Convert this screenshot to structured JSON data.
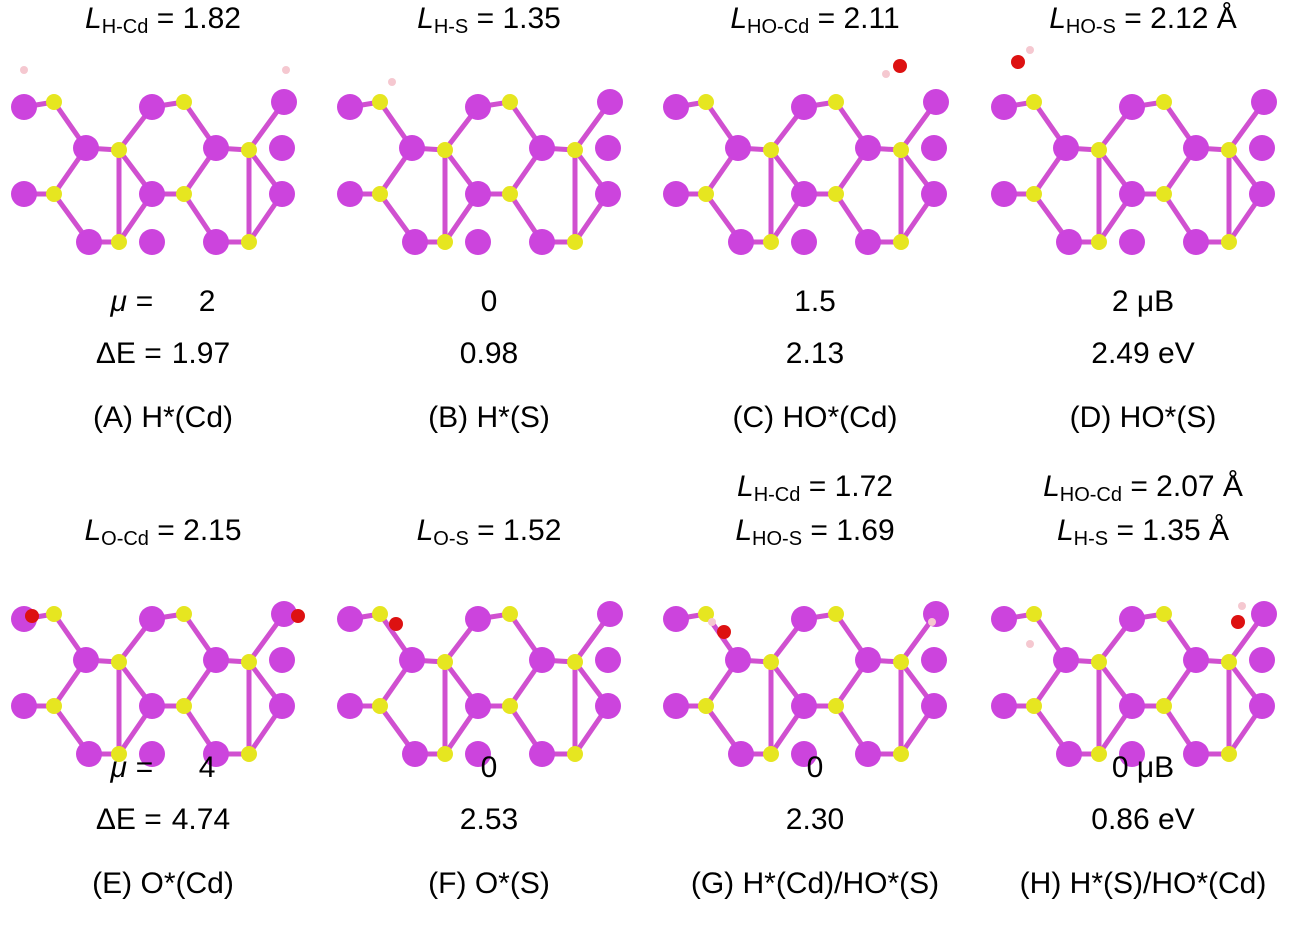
{
  "colors": {
    "cd": "#cc44dd",
    "s": "#e6e620",
    "o": "#dd1111",
    "h": "#f5c8d0",
    "bond_cd": "#d050d0",
    "bond_s": "#e0e020"
  },
  "panels": [
    {
      "id": "A",
      "caption": "(A) H*(Cd)",
      "mu_prefix": "μ =",
      "mu": "2",
      "de_prefix": "ΔE =",
      "de": "1.97",
      "lengths": [
        {
          "sym": "L",
          "sub": "H-Cd",
          "val": "= 1.82"
        }
      ]
    },
    {
      "id": "B",
      "caption": "(B) H*(S)",
      "mu_prefix": "",
      "mu": "0",
      "de_prefix": "",
      "de": "0.98",
      "lengths": [
        {
          "sym": "L",
          "sub": "H-S",
          "val": "= 1.35"
        }
      ]
    },
    {
      "id": "C",
      "caption": "(C) HO*(Cd)",
      "mu_prefix": "",
      "mu": "1.5",
      "de_prefix": "",
      "de": "2.13",
      "lengths": [
        {
          "sym": "L",
          "sub": "HO-Cd",
          "val": "= 2.11"
        }
      ]
    },
    {
      "id": "D",
      "caption": "(D) HO*(S)",
      "mu_prefix": "",
      "mu": "2 μB",
      "de_prefix": "",
      "de": "2.49 eV",
      "lengths": [
        {
          "sym": "L",
          "sub": "HO-S",
          "val": "= 2.12 Å"
        }
      ]
    },
    {
      "id": "E",
      "caption": "(E) O*(Cd)",
      "mu_prefix": "μ =",
      "mu": "4",
      "de_prefix": "ΔE =",
      "de": "4.74",
      "lengths": [
        {
          "sym": "L",
          "sub": "O-Cd",
          "val": "= 2.15"
        }
      ]
    },
    {
      "id": "F",
      "caption": "(F) O*(S)",
      "mu_prefix": "",
      "mu": "0",
      "de_prefix": "",
      "de": "2.53",
      "lengths": [
        {
          "sym": "L",
          "sub": "O-S",
          "val": "= 1.52"
        }
      ]
    },
    {
      "id": "G",
      "caption": "(G) H*(Cd)/HO*(S)",
      "mu_prefix": "",
      "mu": "0",
      "de_prefix": "",
      "de": "2.30",
      "lengths": [
        {
          "sym": "L",
          "sub": "H-Cd",
          "val": "= 1.72"
        },
        {
          "sym": "L",
          "sub": "HO-S",
          "val": "= 1.69"
        }
      ]
    },
    {
      "id": "H",
      "caption": "(H) H*(S)/HO*(Cd)",
      "mu_prefix": "",
      "mu": "0 μB",
      "de_prefix": "",
      "de": "0.86 eV",
      "lengths": [
        {
          "sym": "L",
          "sub": "HO-Cd",
          "val": "= 2.07 Å"
        },
        {
          "sym": "L",
          "sub": "H-S",
          "val": "= 1.35 Å"
        }
      ]
    }
  ]
}
